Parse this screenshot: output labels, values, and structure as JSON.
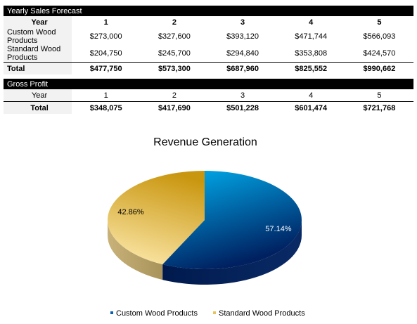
{
  "sales": {
    "title": "Yearly Sales Forecast",
    "header": [
      "Year",
      "1",
      "2",
      "3",
      "4",
      "5"
    ],
    "rows": [
      [
        "Custom Wood Products",
        "$273,000",
        "$327,600",
        "$393,120",
        "$471,744",
        "$566,093"
      ],
      [
        "Standard Wood Products",
        "$204,750",
        "$245,700",
        "$294,840",
        "$353,808",
        "$424,570"
      ]
    ],
    "total": [
      "Total",
      "$477,750",
      "$573,300",
      "$687,960",
      "$825,552",
      "$990,662"
    ]
  },
  "profit": {
    "title": "Gross Profit",
    "header": [
      "Year",
      "1",
      "2",
      "3",
      "4",
      "5"
    ],
    "total": [
      "Total",
      "$348,075",
      "$417,690",
      "$501,228",
      "$601,474",
      "$721,768"
    ]
  },
  "chart_data": {
    "type": "pie",
    "title": "Revenue Generation",
    "categories": [
      "Custom Wood Products",
      "Standard Wood Products"
    ],
    "values": [
      57.14,
      42.86
    ],
    "labels": [
      "57.14%",
      "42.86%"
    ],
    "colors": [
      "#0b5fb0",
      "#e8c25a"
    ],
    "legend_position": "bottom"
  }
}
